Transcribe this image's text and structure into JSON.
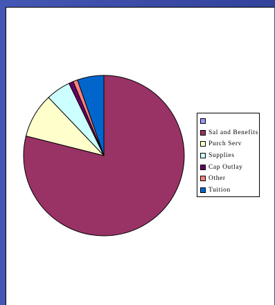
{
  "chart_data": {
    "type": "pie",
    "categories": [
      "",
      "Sal and Benefits",
      "Purch Serv",
      "Supplies",
      "Cap Outlay",
      "Other",
      "Tuition"
    ],
    "values": [
      0,
      78.3,
      8.9,
      4.9,
      0.9,
      0.9,
      5.3
    ],
    "colors": [
      "#9999ff",
      "#993366",
      "#ffffcc",
      "#ccffff",
      "#660066",
      "#ff8080",
      "#0066cc"
    ],
    "title": "",
    "legend_position": "right",
    "start": "12 o'clock",
    "direction": "clockwise"
  },
  "legend": {
    "items": [
      {
        "label": "",
        "color": "#9999ff"
      },
      {
        "label": "Sal and Benefits",
        "color": "#993366"
      },
      {
        "label": "Purch Serv",
        "color": "#ffffcc"
      },
      {
        "label": "Supplies",
        "color": "#ccffff"
      },
      {
        "label": "Cap Outlay",
        "color": "#660066"
      },
      {
        "label": "Other",
        "color": "#ff8080"
      },
      {
        "label": "Tuition",
        "color": "#0066cc"
      }
    ]
  }
}
